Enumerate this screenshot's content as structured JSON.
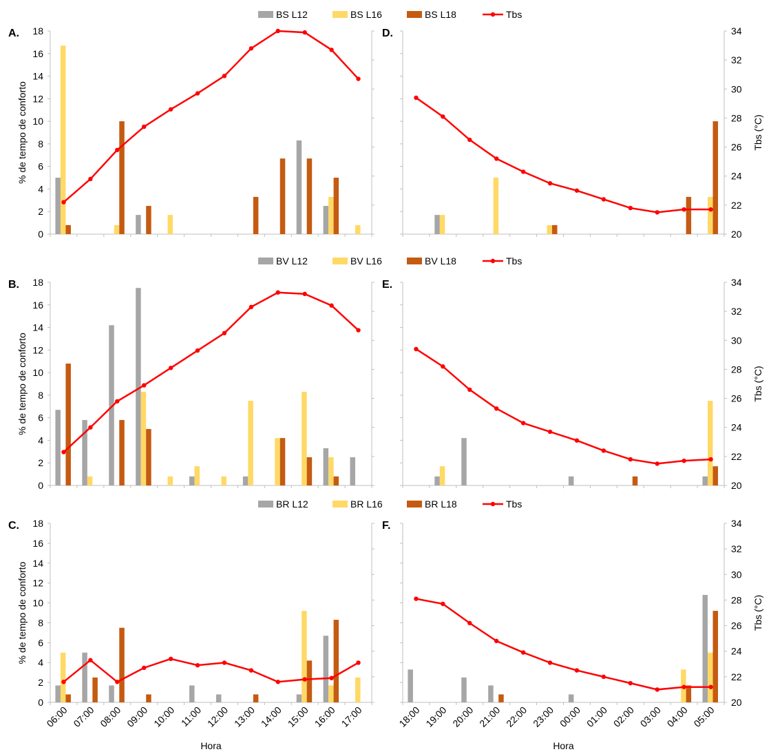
{
  "rows": [
    {
      "legend": {
        "series": [
          "BS L12",
          "BS L16",
          "BS L18"
        ],
        "line": "Tbs"
      },
      "panels": [
        {
          "label": "A.",
          "categories": [
            "06:00",
            "07:00",
            "08:00",
            "09:00",
            "10:00",
            "11:00",
            "12:00",
            "13:00",
            "14:00",
            "15:00",
            "16:00",
            "17:00"
          ],
          "bars": [
            [
              5,
              0,
              0,
              1.7,
              0,
              0,
              0,
              0,
              0,
              8.3,
              2.5,
              0
            ],
            [
              16.7,
              0,
              0.8,
              0,
              1.7,
              0,
              0,
              0,
              0,
              0,
              3.3,
              0.8
            ],
            [
              0.8,
              0,
              10,
              2.5,
              0,
              0,
              0,
              3.3,
              6.7,
              6.7,
              5,
              0
            ]
          ],
          "tbs": [
            22.2,
            23.8,
            25.8,
            27.4,
            28.6,
            29.7,
            30.9,
            32.8,
            34,
            33.9,
            32.7,
            30.7
          ]
        },
        {
          "label": "D.",
          "categories": [
            "18:00",
            "19:00",
            "20:00",
            "21:00",
            "22:00",
            "23:00",
            "00:00",
            "01:00",
            "02:00",
            "03:00",
            "04:00",
            "05:00"
          ],
          "bars": [
            [
              0,
              1.7,
              0,
              0,
              0,
              0,
              0,
              0,
              0,
              0,
              0,
              0
            ],
            [
              0,
              1.7,
              0,
              5,
              0,
              0.8,
              0,
              0,
              0,
              0,
              0,
              3.3
            ],
            [
              0,
              0,
              0,
              0,
              0,
              0.8,
              0,
              0,
              0,
              0,
              3.3,
              10
            ]
          ],
          "tbs": [
            29.4,
            28.1,
            26.5,
            25.2,
            24.3,
            23.5,
            23,
            22.4,
            21.8,
            21.5,
            21.7,
            21.7
          ]
        }
      ]
    },
    {
      "legend": {
        "series": [
          "BV L12",
          "BV L16",
          "BV L18"
        ],
        "line": "Tbs"
      },
      "panels": [
        {
          "label": "B.",
          "categories": [
            "06:00",
            "07:00",
            "08:00",
            "09:00",
            "10:00",
            "11:00",
            "12:00",
            "13:00",
            "14:00",
            "15:00",
            "16:00",
            "17:00"
          ],
          "bars": [
            [
              6.7,
              5.8,
              14.2,
              17.5,
              0,
              0.8,
              0,
              0.8,
              0,
              0,
              3.3,
              2.5
            ],
            [
              0,
              0.8,
              0,
              8.3,
              0.8,
              1.7,
              0.8,
              7.5,
              4.2,
              8.3,
              2.5,
              0
            ],
            [
              10.8,
              0,
              5.8,
              5,
              0,
              0,
              0,
              0,
              4.2,
              2.5,
              0.8,
              0
            ]
          ],
          "tbs": [
            22.3,
            24,
            25.8,
            26.9,
            28.1,
            29.3,
            30.5,
            32.3,
            33.3,
            33.2,
            32.4,
            30.7
          ]
        },
        {
          "label": "E.",
          "categories": [
            "18:00",
            "19:00",
            "20:00",
            "21:00",
            "22:00",
            "23:00",
            "00:00",
            "01:00",
            "02:00",
            "03:00",
            "04:00",
            "05:00"
          ],
          "bars": [
            [
              0,
              0.8,
              4.2,
              0,
              0,
              0,
              0.8,
              0,
              0,
              0,
              0,
              0.8
            ],
            [
              0,
              1.7,
              0,
              0,
              0,
              0,
              0,
              0,
              0,
              0,
              0,
              7.5
            ],
            [
              0,
              0,
              0,
              0,
              0,
              0,
              0,
              0,
              0.8,
              0,
              0,
              1.7
            ]
          ],
          "tbs": [
            29.4,
            28.2,
            26.6,
            25.3,
            24.3,
            23.7,
            23.1,
            22.4,
            21.8,
            21.5,
            21.7,
            21.8
          ]
        }
      ]
    },
    {
      "legend": {
        "series": [
          "BR L12",
          "BR L16",
          "BR L18"
        ],
        "line": "Tbs"
      },
      "panels": [
        {
          "label": "C.",
          "categories": [
            "06:00",
            "07:00",
            "08:00",
            "09:00",
            "10:00",
            "11:00",
            "12:00",
            "13:00",
            "14:00",
            "15:00",
            "16:00",
            "17:00"
          ],
          "bars": [
            [
              1.7,
              5,
              1.7,
              0,
              0,
              1.7,
              0.8,
              0,
              0,
              0.8,
              6.7,
              0
            ],
            [
              5,
              0,
              0,
              0,
              0,
              0,
              0,
              0,
              0,
              9.2,
              1.7,
              2.5
            ],
            [
              0.8,
              2.5,
              7.5,
              0.8,
              0,
              0,
              0,
              0.8,
              0,
              4.2,
              8.3,
              0
            ]
          ],
          "tbs": [
            21.6,
            23.3,
            21.6,
            22.7,
            23.4,
            22.9,
            23.1,
            22.5,
            21.6,
            21.8,
            21.9,
            23.1
          ]
        },
        {
          "label": "F.",
          "categories": [
            "18:00",
            "19:00",
            "20:00",
            "21:00",
            "22:00",
            "23:00",
            "00:00",
            "01:00",
            "02:00",
            "03:00",
            "04:00",
            "05:00"
          ],
          "bars": [
            [
              3.3,
              0,
              2.5,
              1.7,
              0,
              0,
              0.8,
              0,
              0,
              0,
              0,
              10.8
            ],
            [
              0,
              0,
              0,
              0,
              0,
              0,
              0,
              0,
              0,
              0,
              3.3,
              5
            ],
            [
              0,
              0,
              0,
              0.8,
              0,
              0,
              0,
              0,
              0,
              0,
              1.7,
              9.2
            ]
          ],
          "tbs": [
            28.1,
            27.7,
            26.2,
            24.8,
            23.9,
            23.1,
            22.5,
            22,
            21.5,
            21,
            21.2,
            21.2
          ]
        }
      ]
    }
  ],
  "axes": {
    "left_label": "% de tempo de conforto",
    "left_range": [
      0,
      18
    ],
    "left_ticks": [
      "0",
      "2",
      "4",
      "6",
      "8",
      "10",
      "12",
      "14",
      "16",
      "18"
    ],
    "right_label": "Tbs (°C)",
    "right_range": [
      20,
      34
    ],
    "right_ticks": [
      "20",
      "22",
      "24",
      "26",
      "28",
      "30",
      "32",
      "34"
    ],
    "x_label": "Hora"
  },
  "colors": {
    "L12": "#a6a6a6",
    "L16": "#ffd966",
    "L18": "#c55a11",
    "tbs": "#ff0000",
    "axis": "#bfbfbf"
  }
}
